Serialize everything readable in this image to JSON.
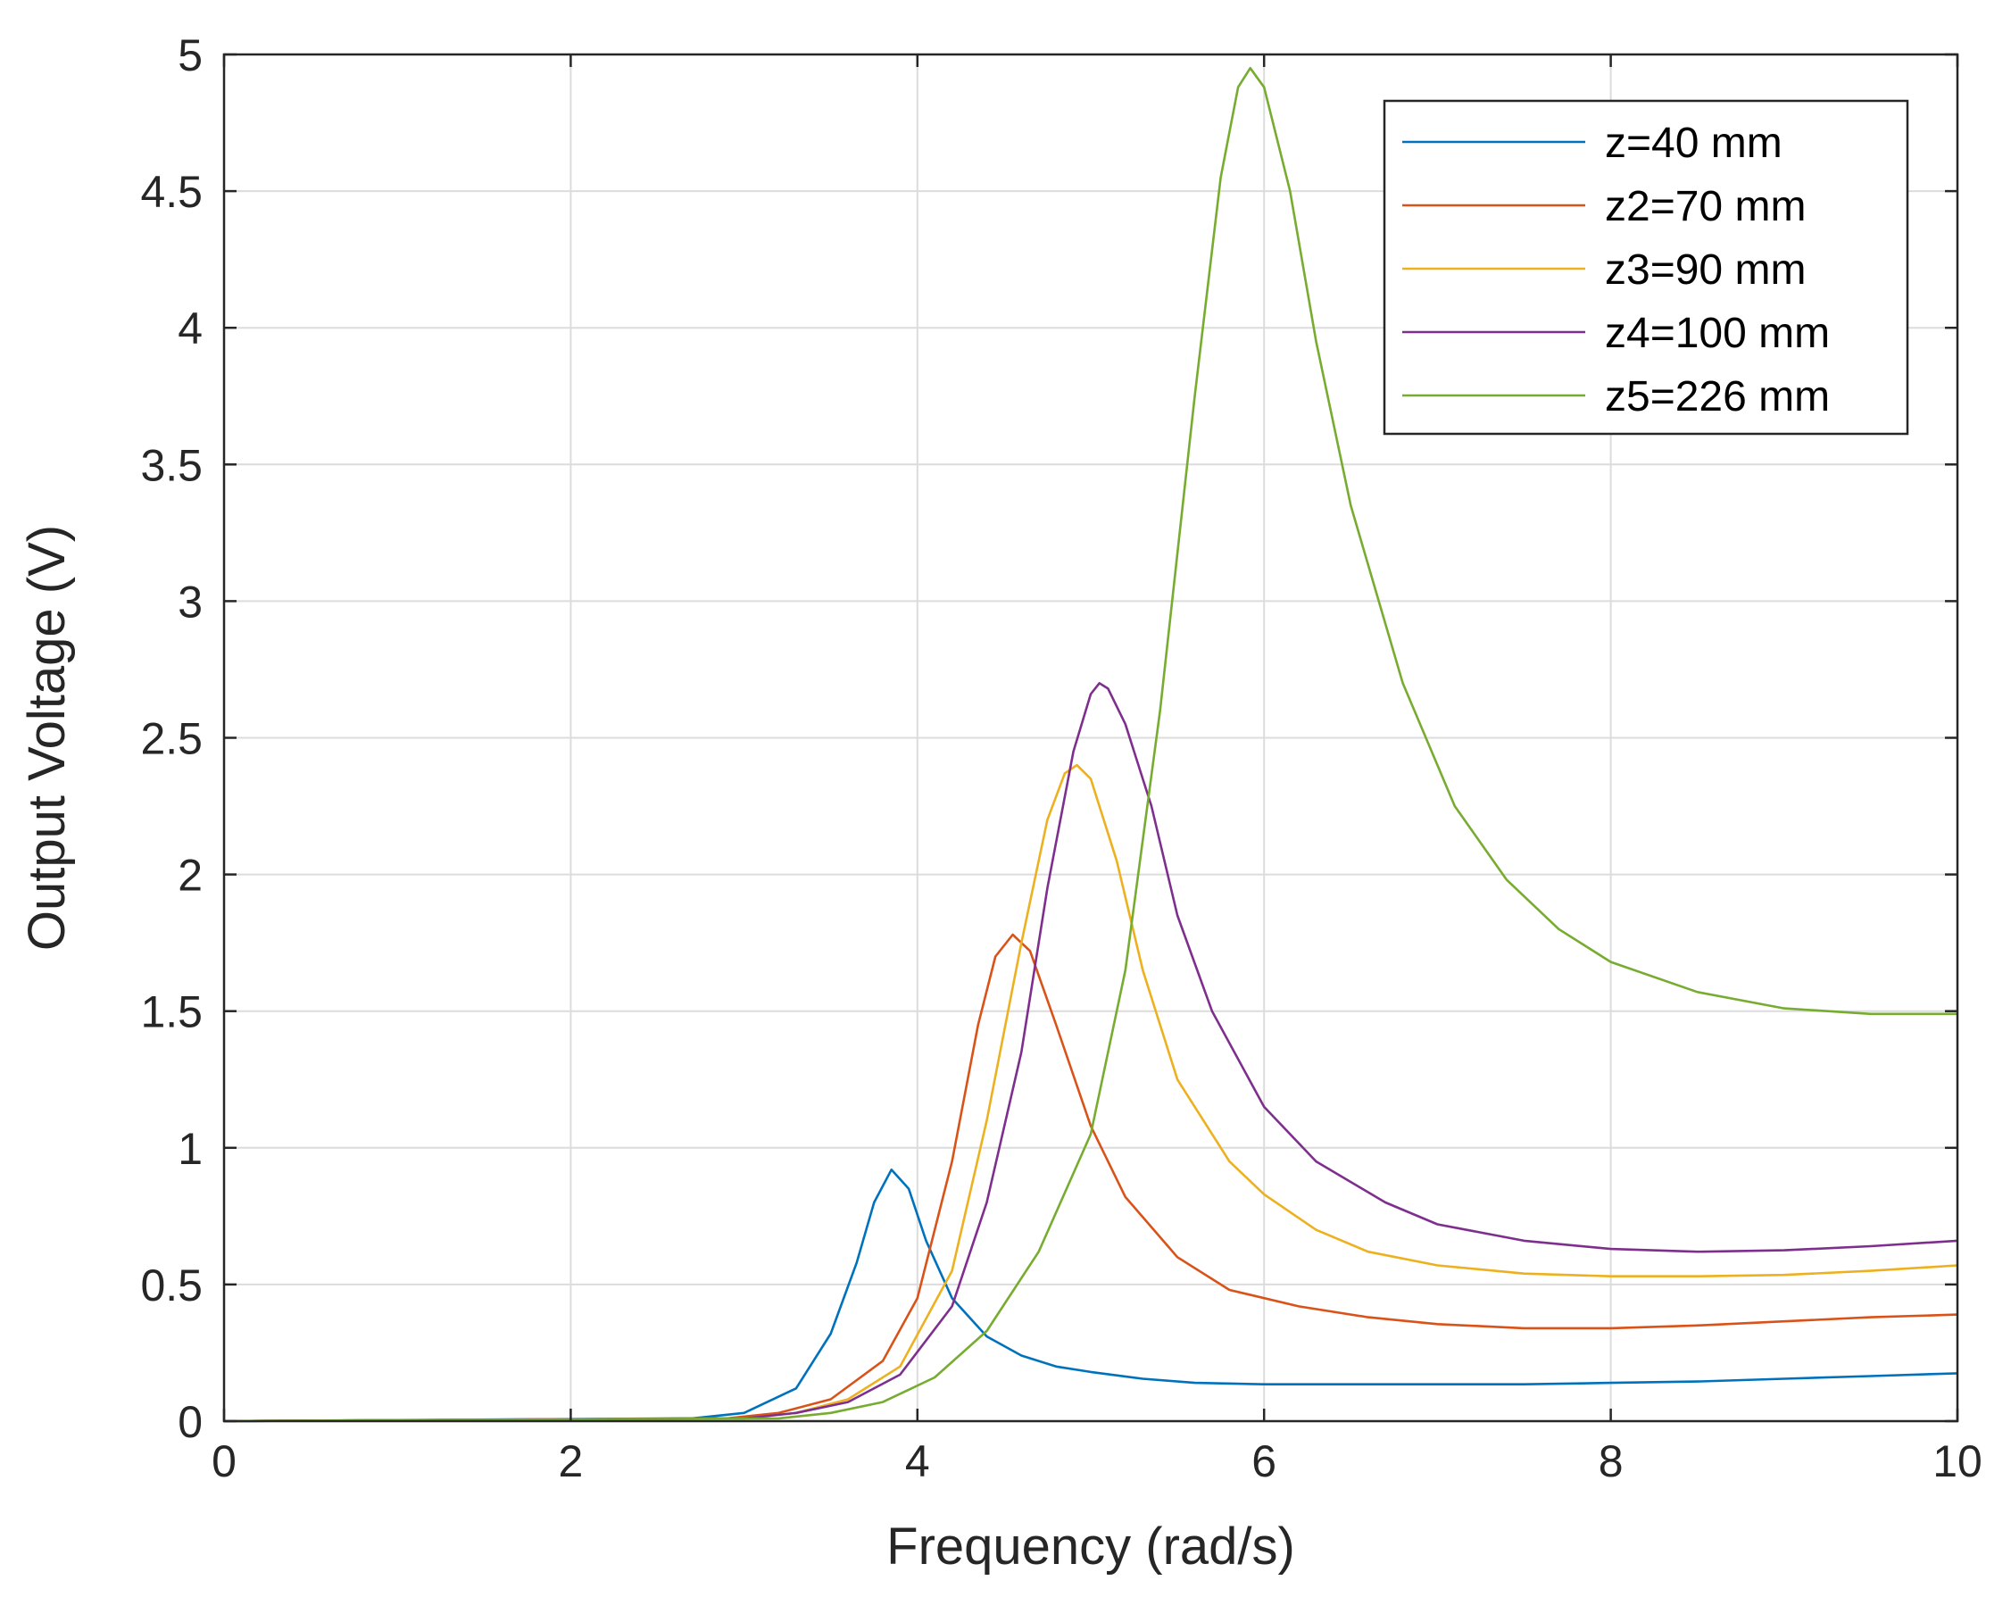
{
  "chart_data": {
    "type": "line",
    "title": "",
    "xlabel": "Frequency (rad/s)",
    "ylabel": "Output Voltage (V)",
    "xlim": [
      0,
      10
    ],
    "ylim": [
      0,
      5
    ],
    "xticks": [
      0,
      2,
      4,
      6,
      8,
      10
    ],
    "xtick_labels": [
      "0",
      "2",
      "4",
      "6",
      "8",
      "10"
    ],
    "yticks": [
      0,
      0.5,
      1,
      1.5,
      2,
      2.5,
      3,
      3.5,
      4,
      4.5,
      5
    ],
    "ytick_labels": [
      "0",
      "0.5",
      "1",
      "1.5",
      "2",
      "2.5",
      "3",
      "3.5",
      "4",
      "4.5",
      "5"
    ],
    "grid": true,
    "legend_position": "top-right",
    "series": [
      {
        "name": "z=40 mm",
        "color": "#0072BD",
        "x": [
          0,
          2.7,
          3.0,
          3.3,
          3.5,
          3.65,
          3.75,
          3.85,
          3.95,
          4.05,
          4.2,
          4.4,
          4.6,
          4.8,
          5.0,
          5.3,
          5.6,
          6.0,
          6.5,
          7.0,
          7.5,
          8.0,
          8.5,
          9.0,
          9.5,
          10.0
        ],
        "y": [
          0,
          0.01,
          0.03,
          0.12,
          0.32,
          0.58,
          0.8,
          0.92,
          0.85,
          0.66,
          0.45,
          0.31,
          0.24,
          0.2,
          0.18,
          0.155,
          0.14,
          0.135,
          0.135,
          0.135,
          0.135,
          0.14,
          0.145,
          0.155,
          0.165,
          0.175
        ]
      },
      {
        "name": "z2=70 mm",
        "color": "#D95319",
        "x": [
          0,
          2.9,
          3.2,
          3.5,
          3.8,
          4.0,
          4.2,
          4.35,
          4.45,
          4.55,
          4.65,
          4.8,
          5.0,
          5.2,
          5.5,
          5.8,
          6.2,
          6.6,
          7.0,
          7.5,
          8.0,
          8.5,
          9.0,
          9.5,
          10.0
        ],
        "y": [
          0,
          0.01,
          0.03,
          0.08,
          0.22,
          0.45,
          0.95,
          1.45,
          1.7,
          1.78,
          1.72,
          1.45,
          1.08,
          0.82,
          0.6,
          0.48,
          0.42,
          0.38,
          0.355,
          0.34,
          0.34,
          0.35,
          0.365,
          0.38,
          0.39
        ]
      },
      {
        "name": "z3=90 mm",
        "color": "#EDB120",
        "x": [
          0,
          3.0,
          3.3,
          3.6,
          3.9,
          4.2,
          4.4,
          4.6,
          4.75,
          4.85,
          4.92,
          5.0,
          5.15,
          5.3,
          5.5,
          5.8,
          6.0,
          6.3,
          6.6,
          7.0,
          7.5,
          8.0,
          8.5,
          9.0,
          9.5,
          10.0
        ],
        "y": [
          0,
          0.01,
          0.03,
          0.08,
          0.2,
          0.55,
          1.1,
          1.75,
          2.2,
          2.37,
          2.4,
          2.35,
          2.05,
          1.65,
          1.25,
          0.95,
          0.83,
          0.7,
          0.62,
          0.57,
          0.54,
          0.53,
          0.53,
          0.535,
          0.55,
          0.57
        ]
      },
      {
        "name": "z4=100 mm",
        "color": "#7E2F8E",
        "x": [
          0,
          3.0,
          3.3,
          3.6,
          3.9,
          4.2,
          4.4,
          4.6,
          4.75,
          4.9,
          5.0,
          5.05,
          5.1,
          5.2,
          5.35,
          5.5,
          5.7,
          6.0,
          6.3,
          6.7,
          7.0,
          7.5,
          8.0,
          8.5,
          9.0,
          9.5,
          10.0
        ],
        "y": [
          0,
          0.01,
          0.03,
          0.07,
          0.17,
          0.42,
          0.8,
          1.35,
          1.95,
          2.45,
          2.66,
          2.7,
          2.68,
          2.55,
          2.25,
          1.85,
          1.5,
          1.15,
          0.95,
          0.8,
          0.72,
          0.66,
          0.63,
          0.62,
          0.625,
          0.64,
          0.66
        ]
      },
      {
        "name": "z5=226 mm",
        "color": "#77AC30",
        "x": [
          0,
          3.2,
          3.5,
          3.8,
          4.1,
          4.4,
          4.7,
          5.0,
          5.2,
          5.4,
          5.6,
          5.75,
          5.85,
          5.92,
          6.0,
          6.15,
          6.3,
          6.5,
          6.8,
          7.1,
          7.4,
          7.7,
          8.0,
          8.5,
          9.0,
          9.5,
          10.0
        ],
        "y": [
          0,
          0.01,
          0.03,
          0.07,
          0.16,
          0.33,
          0.62,
          1.05,
          1.65,
          2.6,
          3.75,
          4.55,
          4.88,
          4.95,
          4.88,
          4.5,
          3.95,
          3.35,
          2.7,
          2.25,
          1.98,
          1.8,
          1.68,
          1.57,
          1.51,
          1.49,
          1.49
        ]
      }
    ]
  }
}
